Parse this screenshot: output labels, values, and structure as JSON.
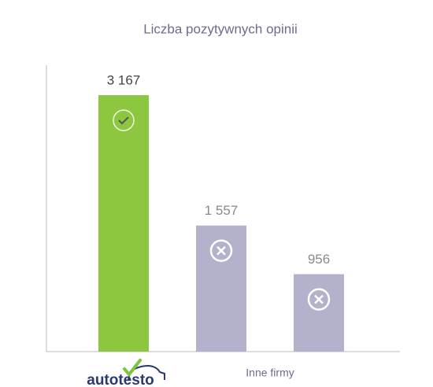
{
  "chart_data": {
    "type": "bar",
    "title": "Liczba pozytywnych opinii",
    "categories": [
      "autotesto",
      "Inne firmy",
      null
    ],
    "values": [
      3167,
      1557,
      956
    ],
    "value_labels": [
      "3 167",
      "1 557",
      "956"
    ],
    "colors": [
      "#8dc63f",
      "#b3b1cc",
      "#b3b1cc"
    ]
  }
}
